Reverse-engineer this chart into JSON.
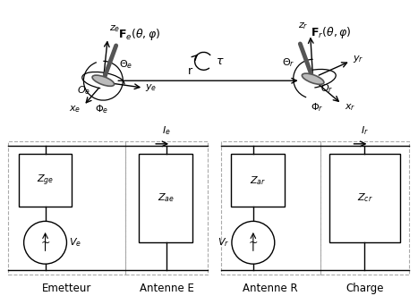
{
  "fig_width": 4.67,
  "fig_height": 3.31,
  "dpi": 100,
  "bg_color": "#ffffff",
  "line_color": "#000000",
  "gray_line": "#555555",
  "component_fill": "#ffffff",
  "dash_color": "#aaaaaa",
  "antenna_fill": "#888888",
  "labels": {
    "emetteur": "Emetteur",
    "antenne_e": "Antenne E",
    "antenne_r": "Antenne R",
    "charge": "Charge",
    "Zge": "$Z_{ge}$",
    "Zae": "$Z_{ae}$",
    "Zar": "$Z_{ar}$",
    "Zcr": "$Z_{cr}$",
    "Ve": "$V_e$",
    "Vr": "$V_r$",
    "Ie": "$I_e$",
    "Ir": "$I_r$",
    "Fe": "$\\mathbf{F}_e(\\theta,\\varphi)$",
    "Fr": "$\\mathbf{F}_r(\\theta,\\varphi)$",
    "ze": "$z_e$",
    "ye": "$y_e$",
    "xe": "$x_e$",
    "zr": "$z_r$",
    "yr": "$y_r$",
    "xr": "$x_r$",
    "Oe": "$O_e$",
    "Or": "$O_r$",
    "Theta_e": "$\\Theta_e$",
    "Phi_e": "$\\Phi_e$",
    "Theta_r": "$\\Theta_r$",
    "Phi_r": "$\\Phi_r$",
    "r": "r",
    "tau": "$\\tau$"
  }
}
